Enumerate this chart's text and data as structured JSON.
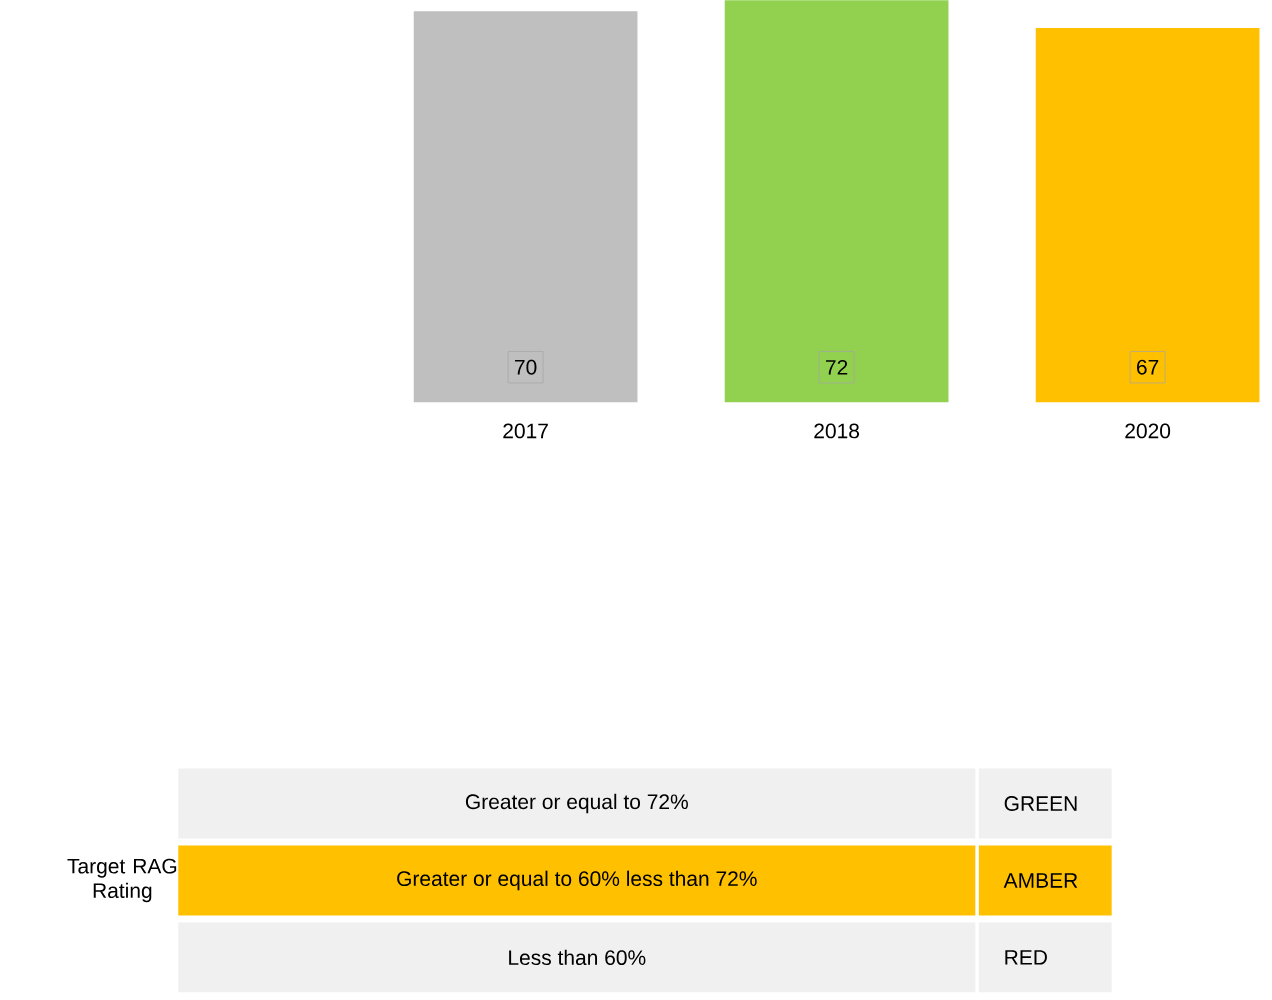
{
  "chart_data": {
    "type": "bar",
    "categories": [
      "2017",
      "2018",
      "2020"
    ],
    "values": [
      70,
      72,
      67
    ],
    "colors": [
      "#bfbfbf",
      "#92d050",
      "#ffc000"
    ],
    "ylim": [
      0,
      72
    ],
    "data_labels": true,
    "tick_labels": "x",
    "annotations": [
      "Target RAG Rating",
      "Greater or equal to 72%",
      "GREEN",
      "Greater or equal to 60% less than 72%",
      "AMBER",
      "Less than 60%",
      "RED"
    ]
  }
}
